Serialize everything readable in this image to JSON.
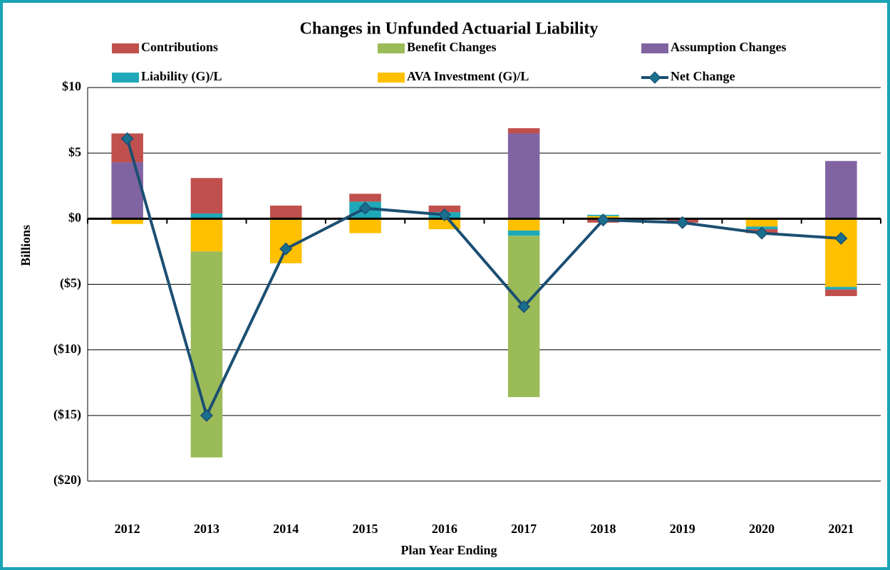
{
  "chart_data": {
    "type": "bar",
    "title": "Changes in Unfunded Actuarial Liability",
    "x_label": "Plan Year Ending",
    "y_label": "Billions",
    "categories": [
      "2012",
      "2013",
      "2014",
      "2015",
      "2016",
      "2017",
      "2018",
      "2019",
      "2020",
      "2021"
    ],
    "series": [
      {
        "name": "Contributions",
        "color": "#c0504d",
        "values": [
          2.2,
          2.7,
          1.0,
          0.6,
          0.5,
          0.4,
          -0.3,
          -0.3,
          -0.3,
          -0.5
        ]
      },
      {
        "name": "Benefit Changes",
        "color": "#9bbb59",
        "values": [
          0,
          -15.7,
          0,
          0,
          0,
          -12.3,
          0,
          0,
          0,
          0
        ]
      },
      {
        "name": "Assumption Changes",
        "color": "#8064a2",
        "values": [
          4.3,
          0,
          0,
          0,
          0,
          6.5,
          0,
          0,
          0,
          4.4
        ]
      },
      {
        "name": "Liability (G)/L",
        "color": "#1fa9b8",
        "values": [
          0,
          0.4,
          0,
          1.3,
          0.5,
          -0.4,
          0.1,
          0,
          -0.2,
          -0.2
        ]
      },
      {
        "name": "AVA Investment (G)/L",
        "color": "#ffc000",
        "values": [
          -0.4,
          -2.5,
          -3.4,
          -1.1,
          -0.8,
          -0.9,
          0.2,
          0,
          -0.6,
          -5.2
        ]
      },
      {
        "name": "Net Change",
        "color": "#1b4f72",
        "marker_color": "#1a6e8e",
        "line": true,
        "values": [
          6.1,
          -15.0,
          -2.3,
          0.8,
          0.3,
          -6.7,
          -0.1,
          -0.3,
          -1.1,
          -1.5
        ]
      }
    ],
    "ylim": [
      -20,
      10
    ],
    "yticks": [
      {
        "value": -20,
        "label": "($20)"
      },
      {
        "value": -15,
        "label": "($15)"
      },
      {
        "value": -10,
        "label": "($10)"
      },
      {
        "value": -5,
        "label": "($5)"
      },
      {
        "value": 0,
        "label": "$0"
      },
      {
        "value": 5,
        "label": "$5"
      },
      {
        "value": 10,
        "label": "$10"
      }
    ],
    "grid": true
  }
}
